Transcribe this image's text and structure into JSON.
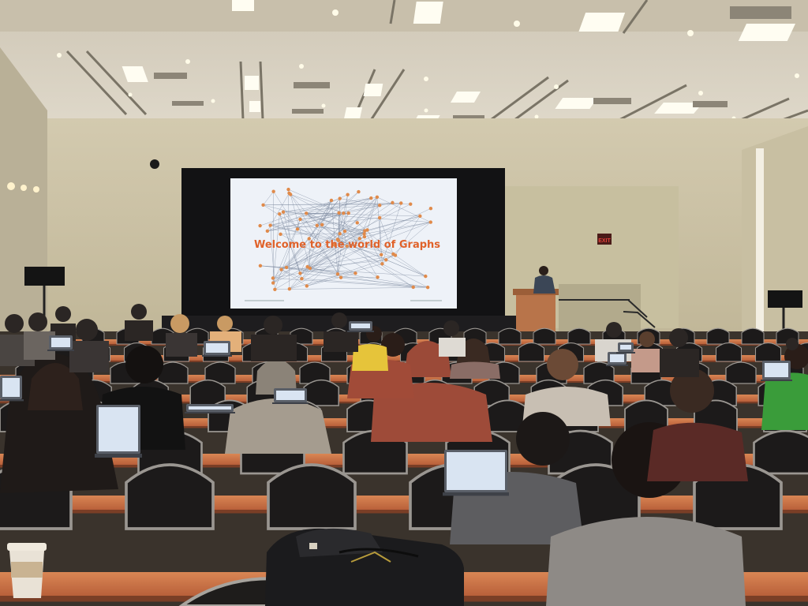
{
  "slide": {
    "title": "Welcome to the world of Graphs",
    "title_color": "#e0622a",
    "node_color": "#e08a4a",
    "edge_color": "#7d8aa0",
    "background": "#eef2f8"
  },
  "signage": {
    "exit_label": "EXIT",
    "exit_color": "#e2403a"
  },
  "palette": {
    "ceiling": "#d9d2c3",
    "wall": "#cfc6ad",
    "curtain": "#121214",
    "table_top": "#cf7648",
    "chair": "#1c1a1a",
    "chair_frame": "#9a9691",
    "podium": "#b8744a",
    "laptop_screen": "#d9e4f2",
    "cup": "#e9e2d6"
  }
}
